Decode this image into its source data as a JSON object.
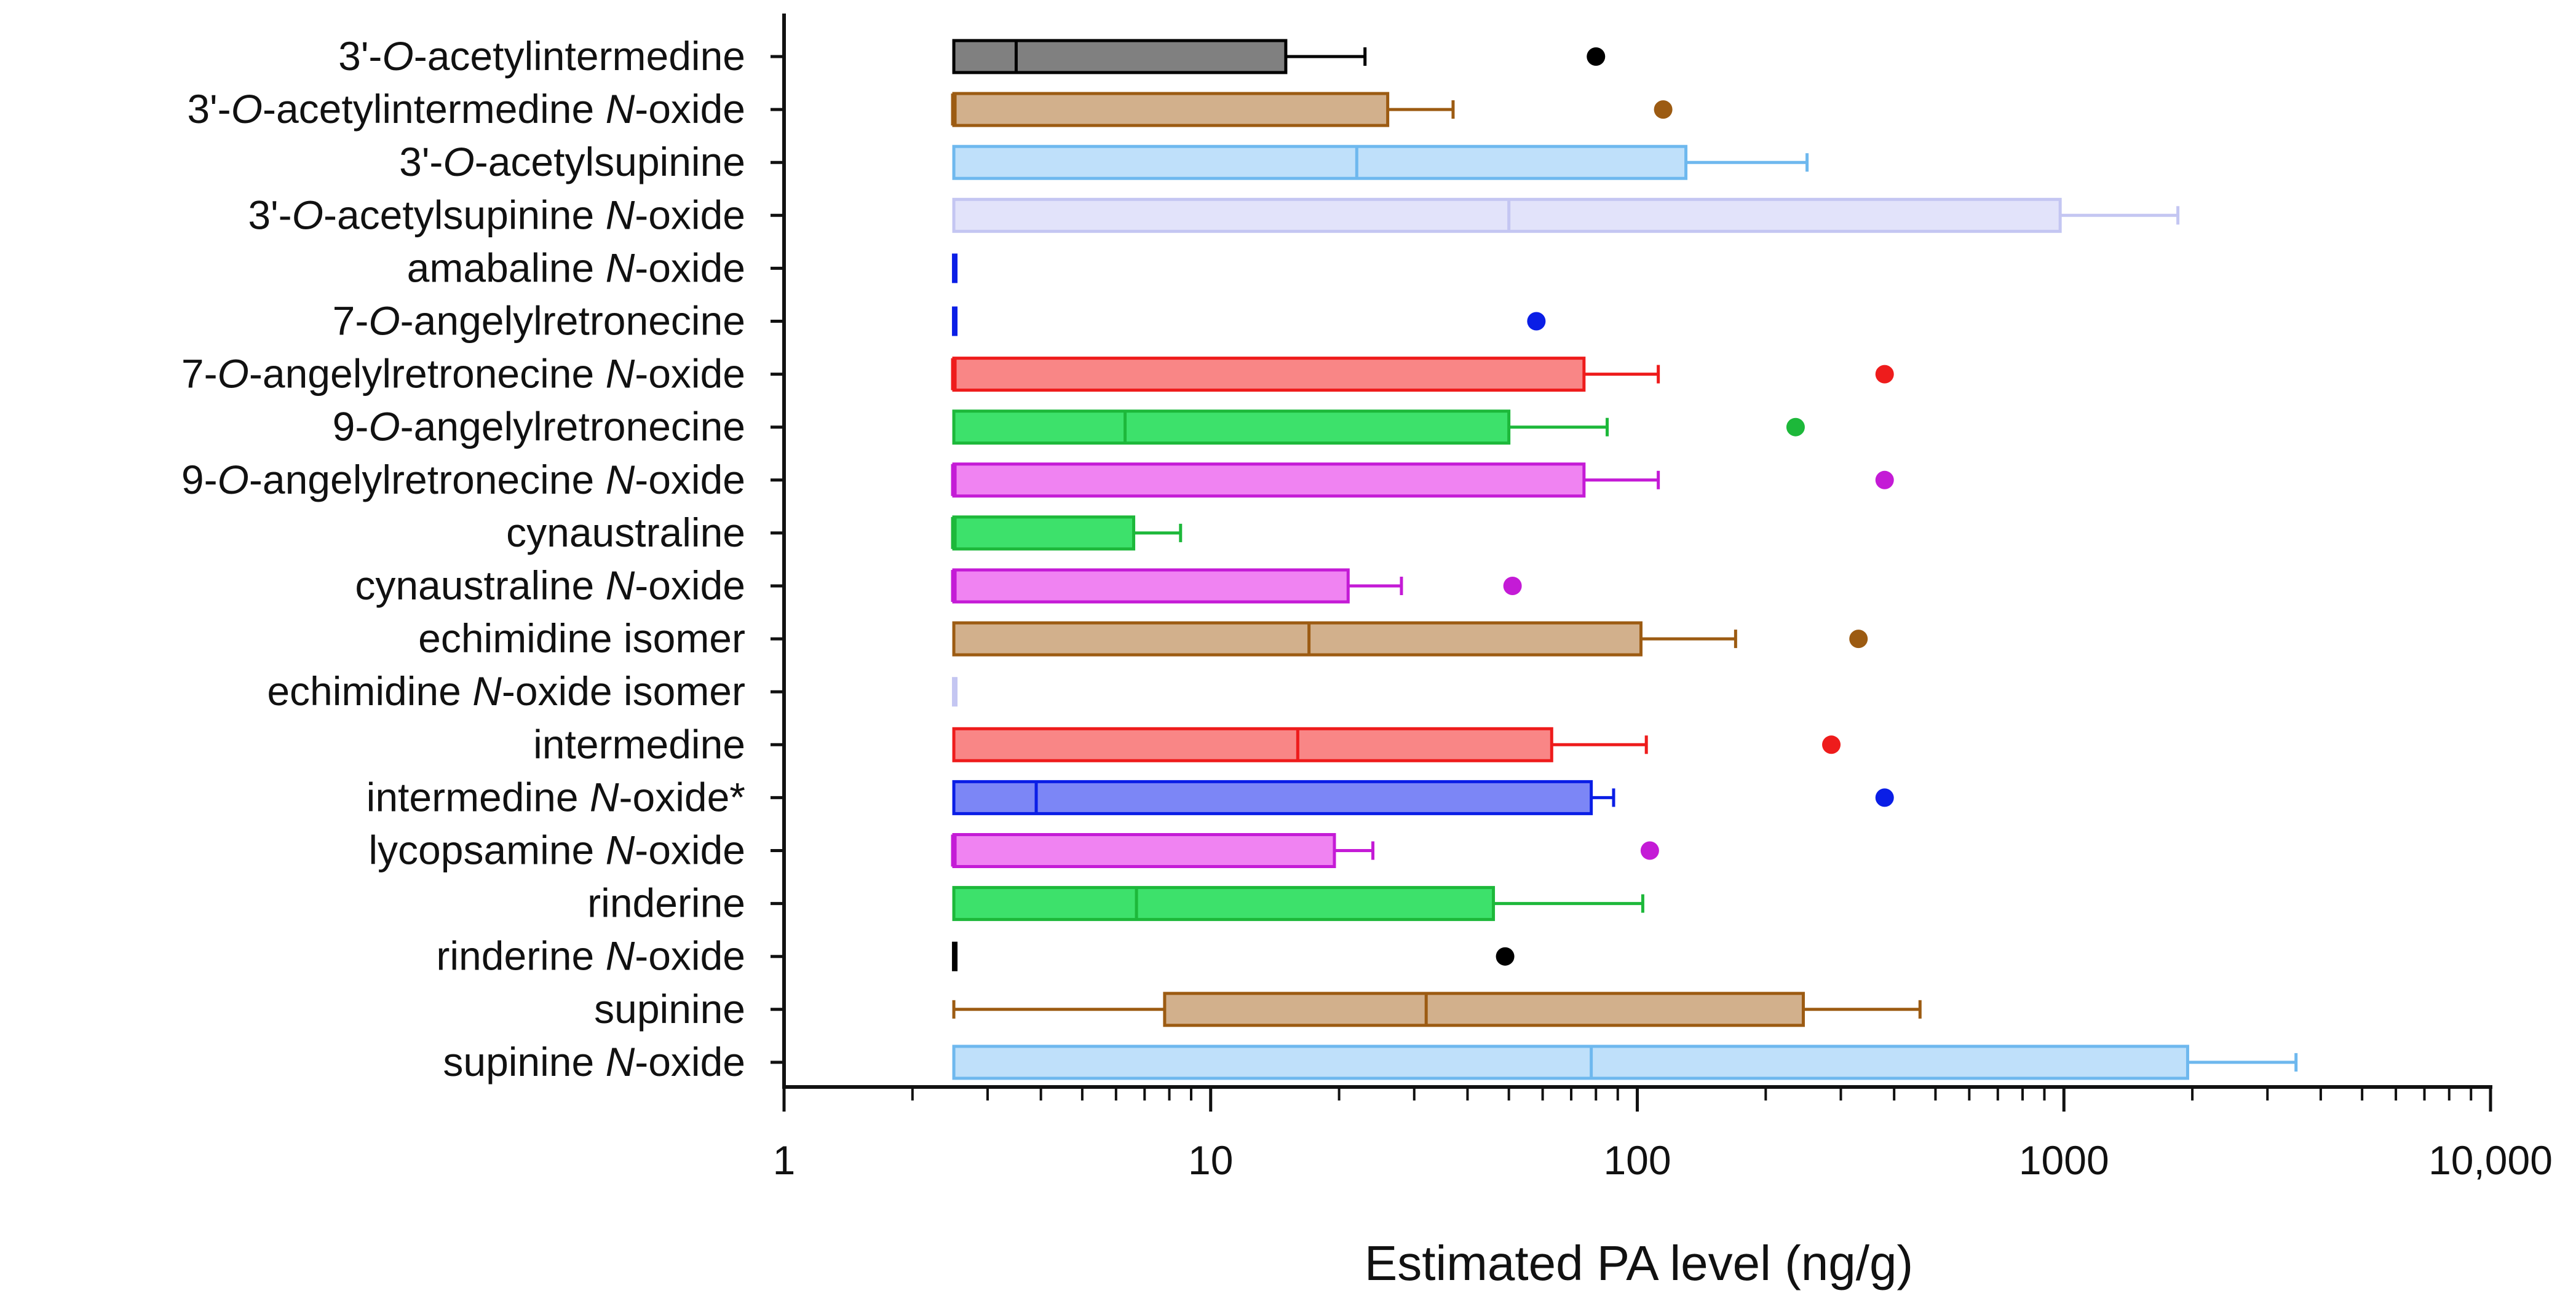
{
  "chart_data": {
    "type": "boxplot",
    "orientation": "horizontal",
    "xscale": "log",
    "xlim": [
      1,
      10000
    ],
    "xlabel": "Estimated PA level (ng/g)",
    "xtick_values": [
      1,
      10,
      100,
      1000,
      10000
    ],
    "xtick_labels": [
      "1",
      "10",
      "100",
      "1000",
      "10,000"
    ],
    "series": [
      {
        "label_parts": [
          {
            "text": "3'-"
          },
          {
            "text": "O",
            "italic": true
          },
          {
            "text": "-acetylintermedine"
          }
        ],
        "color": "#000000",
        "fill": "#808080",
        "box": [
          2.5,
          15
        ],
        "median": 3.5,
        "whisker_high": 23,
        "outlier": 80
      },
      {
        "label_parts": [
          {
            "text": "3'-"
          },
          {
            "text": "O",
            "italic": true
          },
          {
            "text": "-acetylintermedine "
          },
          {
            "text": "N",
            "italic": true
          },
          {
            "text": "-oxide"
          }
        ],
        "color": "#9C5B12",
        "fill": "#D2B08C",
        "box": [
          2.5,
          26
        ],
        "median": 2.5,
        "whisker_high": 37,
        "outlier": 115
      },
      {
        "label_parts": [
          {
            "text": "3'-"
          },
          {
            "text": "O",
            "italic": true
          },
          {
            "text": "-acetylsupinine"
          }
        ],
        "color": "#6EB8EE",
        "fill": "#BFE0FA",
        "box": [
          2.5,
          130
        ],
        "median": 22,
        "whisker_high": 250,
        "outlier": null
      },
      {
        "label_parts": [
          {
            "text": "3'-"
          },
          {
            "text": "O",
            "italic": true
          },
          {
            "text": "-acetylsupinine "
          },
          {
            "text": "N",
            "italic": true
          },
          {
            "text": "-oxide"
          }
        ],
        "color": "#C4C6F2",
        "fill": "#E2E3FA",
        "box": [
          2.5,
          980
        ],
        "median": 50,
        "whisker_high": 1850,
        "outlier": null
      },
      {
        "label_parts": [
          {
            "text": "amabaline "
          },
          {
            "text": "N",
            "italic": true
          },
          {
            "text": "-oxide"
          }
        ],
        "color": "#0A1EE6",
        "fill": "#0A1EE6",
        "box": [
          2.5,
          2.5
        ],
        "median": 2.5,
        "whisker_high": null,
        "outlier": null
      },
      {
        "label_parts": [
          {
            "text": "7-"
          },
          {
            "text": "O",
            "italic": true
          },
          {
            "text": "-angelylretronecine"
          }
        ],
        "color": "#0A1EE6",
        "fill": "#0A1EE6",
        "box": [
          2.5,
          2.5
        ],
        "median": 2.5,
        "whisker_high": null,
        "outlier": 58
      },
      {
        "label_parts": [
          {
            "text": "7-"
          },
          {
            "text": "O",
            "italic": true
          },
          {
            "text": "-angelylretronecine "
          },
          {
            "text": "N",
            "italic": true
          },
          {
            "text": "-oxide"
          }
        ],
        "color": "#EE1C1C",
        "fill": "#F98686",
        "box": [
          2.5,
          75
        ],
        "median": 2.5,
        "whisker_high": 112,
        "outlier": 380
      },
      {
        "label_parts": [
          {
            "text": "9-"
          },
          {
            "text": "O",
            "italic": true
          },
          {
            "text": "-angelylretronecine"
          }
        ],
        "color": "#1DB83A",
        "fill": "#3DE16B",
        "box": [
          2.5,
          50
        ],
        "median": 6.3,
        "whisker_high": 85,
        "outlier": 235
      },
      {
        "label_parts": [
          {
            "text": "9-"
          },
          {
            "text": "O",
            "italic": true
          },
          {
            "text": "-angelylretronecine "
          },
          {
            "text": "N",
            "italic": true
          },
          {
            "text": "-oxide"
          }
        ],
        "color": "#C41BD6",
        "fill": "#F083F2",
        "box": [
          2.5,
          75
        ],
        "median": 2.5,
        "whisker_high": 112,
        "outlier": 380
      },
      {
        "label_parts": [
          {
            "text": "cynaustraline"
          }
        ],
        "color": "#1DB83A",
        "fill": "#3DE16B",
        "box": [
          2.5,
          6.6
        ],
        "median": 2.5,
        "whisker_high": 8.5,
        "outlier": null
      },
      {
        "label_parts": [
          {
            "text": "cynaustraline "
          },
          {
            "text": "N",
            "italic": true
          },
          {
            "text": "-oxide"
          }
        ],
        "color": "#C41BD6",
        "fill": "#F083F2",
        "box": [
          2.5,
          21
        ],
        "median": 2.5,
        "whisker_high": 28,
        "outlier": 51
      },
      {
        "label_parts": [
          {
            "text": "echimidine isomer"
          }
        ],
        "color": "#9C5B12",
        "fill": "#D2B08C",
        "box": [
          2.5,
          102
        ],
        "median": 17,
        "whisker_high": 170,
        "outlier": 330
      },
      {
        "label_parts": [
          {
            "text": "echimidine "
          },
          {
            "text": "N",
            "italic": true
          },
          {
            "text": "-oxide isomer"
          }
        ],
        "color": "#C4C6F2",
        "fill": "#C4C6F2",
        "box": [
          2.5,
          2.5
        ],
        "median": 2.5,
        "whisker_high": null,
        "outlier": null
      },
      {
        "label_parts": [
          {
            "text": "intermedine"
          }
        ],
        "color": "#EE1C1C",
        "fill": "#F98686",
        "box": [
          2.5,
          63
        ],
        "median": 16,
        "whisker_high": 105,
        "outlier": 285
      },
      {
        "label_parts": [
          {
            "text": "intermedine "
          },
          {
            "text": "N",
            "italic": true
          },
          {
            "text": "-oxide*"
          }
        ],
        "color": "#0A1EE6",
        "fill": "#7C86F6",
        "box": [
          2.5,
          78
        ],
        "median": 3.9,
        "whisker_high": 88,
        "outlier": 380
      },
      {
        "label_parts": [
          {
            "text": "lycopsamine "
          },
          {
            "text": "N",
            "italic": true
          },
          {
            "text": "-oxide"
          }
        ],
        "color": "#C41BD6",
        "fill": "#F083F2",
        "box": [
          2.5,
          19.5
        ],
        "median": 2.5,
        "whisker_high": 24,
        "outlier": 107
      },
      {
        "label_parts": [
          {
            "text": "rinderine"
          }
        ],
        "color": "#1DB83A",
        "fill": "#3DE16B",
        "box": [
          2.5,
          46
        ],
        "median": 6.7,
        "whisker_high": 103,
        "outlier": null
      },
      {
        "label_parts": [
          {
            "text": "rinderine "
          },
          {
            "text": "N",
            "italic": true
          },
          {
            "text": "-oxide"
          }
        ],
        "color": "#000000",
        "fill": "#000000",
        "box": [
          2.5,
          2.5
        ],
        "median": 2.5,
        "whisker_high": null,
        "outlier": 49
      },
      {
        "label_parts": [
          {
            "text": "supinine"
          }
        ],
        "color": "#9C5B12",
        "fill": "#D2B08C",
        "box": [
          7.8,
          245
        ],
        "median": 32,
        "whisker_low": 2.5,
        "whisker_high": 460,
        "outlier": null
      },
      {
        "label_parts": [
          {
            "text": "supinine "
          },
          {
            "text": "N",
            "italic": true
          },
          {
            "text": "-oxide"
          }
        ],
        "color": "#6EB8EE",
        "fill": "#BFE0FA",
        "box": [
          2.5,
          1950
        ],
        "median": 78,
        "whisker_high": 3500,
        "outlier": null
      }
    ]
  }
}
